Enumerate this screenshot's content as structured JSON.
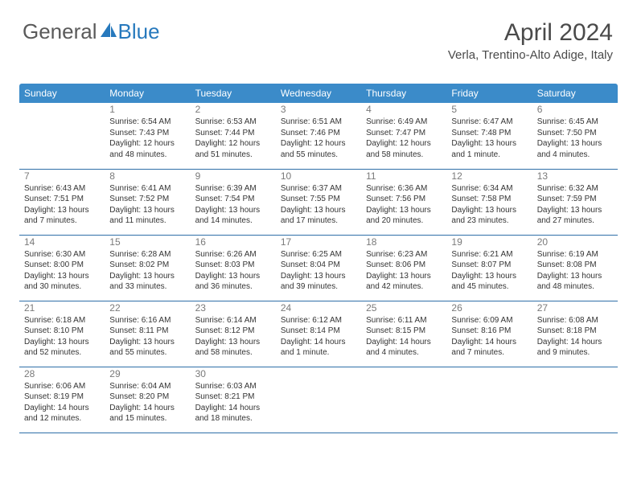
{
  "brand": {
    "text_left": "General",
    "text_right": "Blue"
  },
  "header": {
    "title": "April 2024",
    "location": "Verla, Trentino-Alto Adige, Italy"
  },
  "colors": {
    "header_row_bg": "#3b8bc9",
    "header_row_text": "#ffffff",
    "cell_border": "#2f6fa8",
    "daynum_color": "#7a7a7a",
    "body_text": "#343434",
    "brand_gray": "#5a5a5a",
    "brand_blue": "#2779bd"
  },
  "layout": {
    "columns": 7,
    "rows": 5,
    "first_day_column_index": 1,
    "days_in_month": 30
  },
  "weekdays": [
    "Sunday",
    "Monday",
    "Tuesday",
    "Wednesday",
    "Thursday",
    "Friday",
    "Saturday"
  ],
  "days": [
    {
      "n": 1,
      "sr": "6:54 AM",
      "ss": "7:43 PM",
      "dl": "12 hours and 48 minutes."
    },
    {
      "n": 2,
      "sr": "6:53 AM",
      "ss": "7:44 PM",
      "dl": "12 hours and 51 minutes."
    },
    {
      "n": 3,
      "sr": "6:51 AM",
      "ss": "7:46 PM",
      "dl": "12 hours and 55 minutes."
    },
    {
      "n": 4,
      "sr": "6:49 AM",
      "ss": "7:47 PM",
      "dl": "12 hours and 58 minutes."
    },
    {
      "n": 5,
      "sr": "6:47 AM",
      "ss": "7:48 PM",
      "dl": "13 hours and 1 minute."
    },
    {
      "n": 6,
      "sr": "6:45 AM",
      "ss": "7:50 PM",
      "dl": "13 hours and 4 minutes."
    },
    {
      "n": 7,
      "sr": "6:43 AM",
      "ss": "7:51 PM",
      "dl": "13 hours and 7 minutes."
    },
    {
      "n": 8,
      "sr": "6:41 AM",
      "ss": "7:52 PM",
      "dl": "13 hours and 11 minutes."
    },
    {
      "n": 9,
      "sr": "6:39 AM",
      "ss": "7:54 PM",
      "dl": "13 hours and 14 minutes."
    },
    {
      "n": 10,
      "sr": "6:37 AM",
      "ss": "7:55 PM",
      "dl": "13 hours and 17 minutes."
    },
    {
      "n": 11,
      "sr": "6:36 AM",
      "ss": "7:56 PM",
      "dl": "13 hours and 20 minutes."
    },
    {
      "n": 12,
      "sr": "6:34 AM",
      "ss": "7:58 PM",
      "dl": "13 hours and 23 minutes."
    },
    {
      "n": 13,
      "sr": "6:32 AM",
      "ss": "7:59 PM",
      "dl": "13 hours and 27 minutes."
    },
    {
      "n": 14,
      "sr": "6:30 AM",
      "ss": "8:00 PM",
      "dl": "13 hours and 30 minutes."
    },
    {
      "n": 15,
      "sr": "6:28 AM",
      "ss": "8:02 PM",
      "dl": "13 hours and 33 minutes."
    },
    {
      "n": 16,
      "sr": "6:26 AM",
      "ss": "8:03 PM",
      "dl": "13 hours and 36 minutes."
    },
    {
      "n": 17,
      "sr": "6:25 AM",
      "ss": "8:04 PM",
      "dl": "13 hours and 39 minutes."
    },
    {
      "n": 18,
      "sr": "6:23 AM",
      "ss": "8:06 PM",
      "dl": "13 hours and 42 minutes."
    },
    {
      "n": 19,
      "sr": "6:21 AM",
      "ss": "8:07 PM",
      "dl": "13 hours and 45 minutes."
    },
    {
      "n": 20,
      "sr": "6:19 AM",
      "ss": "8:08 PM",
      "dl": "13 hours and 48 minutes."
    },
    {
      "n": 21,
      "sr": "6:18 AM",
      "ss": "8:10 PM",
      "dl": "13 hours and 52 minutes."
    },
    {
      "n": 22,
      "sr": "6:16 AM",
      "ss": "8:11 PM",
      "dl": "13 hours and 55 minutes."
    },
    {
      "n": 23,
      "sr": "6:14 AM",
      "ss": "8:12 PM",
      "dl": "13 hours and 58 minutes."
    },
    {
      "n": 24,
      "sr": "6:12 AM",
      "ss": "8:14 PM",
      "dl": "14 hours and 1 minute."
    },
    {
      "n": 25,
      "sr": "6:11 AM",
      "ss": "8:15 PM",
      "dl": "14 hours and 4 minutes."
    },
    {
      "n": 26,
      "sr": "6:09 AM",
      "ss": "8:16 PM",
      "dl": "14 hours and 7 minutes."
    },
    {
      "n": 27,
      "sr": "6:08 AM",
      "ss": "8:18 PM",
      "dl": "14 hours and 9 minutes."
    },
    {
      "n": 28,
      "sr": "6:06 AM",
      "ss": "8:19 PM",
      "dl": "14 hours and 12 minutes."
    },
    {
      "n": 29,
      "sr": "6:04 AM",
      "ss": "8:20 PM",
      "dl": "14 hours and 15 minutes."
    },
    {
      "n": 30,
      "sr": "6:03 AM",
      "ss": "8:21 PM",
      "dl": "14 hours and 18 minutes."
    }
  ],
  "labels": {
    "sunrise": "Sunrise:",
    "sunset": "Sunset:",
    "daylight": "Daylight:"
  }
}
